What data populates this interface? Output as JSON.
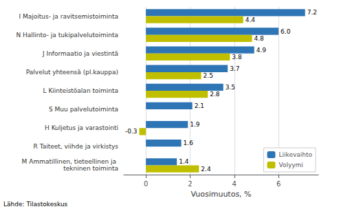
{
  "chart_data": {
    "type": "bar",
    "orientation": "horizontal",
    "categories": [
      "M Ammatillinen, tieteellinen ja tekninen toiminta",
      "R Taiteet, viihde ja virkistys",
      "H Kuljetus ja varastointi",
      "S Muu palvelutoiminta",
      "L Kiinteistöalan toiminta",
      "Palvelut yhteensä (pl.kauppa)",
      "J Informaatio ja viestintä",
      "N Hallinto- ja tukipalvelutoiminta",
      "I Majoitus- ja ravitsemistoiminta"
    ],
    "series": [
      {
        "name": "Liikevaihto",
        "color": "#2E75B6",
        "values": [
          1.4,
          1.6,
          1.9,
          2.1,
          3.5,
          3.7,
          4.9,
          6.0,
          7.2
        ],
        "value_labels": [
          "1.4",
          "1.6",
          "1.9",
          "2.1",
          "3.5",
          "3.7",
          "4.9",
          "6.0",
          "7.2"
        ]
      },
      {
        "name": "Volyymi",
        "color": "#BFBF00",
        "values": [
          2.4,
          null,
          -0.3,
          null,
          2.8,
          2.5,
          3.8,
          4.8,
          4.4
        ]
      }
    ],
    "xlabel": "Vuosimuutos, %",
    "xlim": [
      -1.0,
      7.8
    ],
    "xticks": [
      0,
      2,
      4,
      6
    ],
    "grid": true,
    "legend": "lower right",
    "data_labels": true,
    "annotations": [
      "Lähde: Tilastokeskus"
    ]
  }
}
